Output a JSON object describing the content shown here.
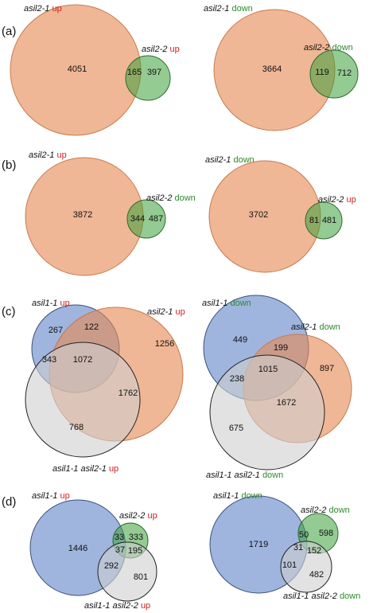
{
  "panels": {
    "a": {
      "label": "(a)",
      "left": {
        "set1": "asil2-1",
        "set1_dir": "up",
        "set2": "asil2-2",
        "set2_dir": "up",
        "only1": "4051",
        "both": "165",
        "only2": "397"
      },
      "right": {
        "set1": "asil2-1",
        "set1_dir": "down",
        "set2": "asil2-2",
        "set2_dir": "down",
        "only1": "3664",
        "both": "119",
        "only2": "712"
      }
    },
    "b": {
      "label": "(b)",
      "left": {
        "set1": "asil2-1",
        "set1_dir": "up",
        "set2": "asil2-2",
        "set2_dir": "down",
        "only1": "3872",
        "both": "344",
        "only2": "487"
      },
      "right": {
        "set1": "asil2-1",
        "set1_dir": "down",
        "set2": "asil2-2",
        "set2_dir": "up",
        "only1": "3702",
        "both": "81",
        "only2": "481"
      }
    },
    "c": {
      "label": "(c)",
      "left": {
        "blue": "asil1-1",
        "blue_dir": "up",
        "orange": "asil2-1",
        "orange_dir": "up",
        "grey": "asil1-1 asil2-1",
        "grey_dir": "up",
        "n_blue": "267",
        "n_blue_orange": "122",
        "n_orange": "1256",
        "n_blue_grey": "343",
        "n_all": "1072",
        "n_orange_grey": "1762",
        "n_grey": "768"
      },
      "right": {
        "blue": "asil1-1",
        "blue_dir": "down",
        "orange": "asil2-1",
        "orange_dir": "down",
        "grey": "asil1-1 asil2-1",
        "grey_dir": "down",
        "n_blue": "449",
        "n_blue_orange": "199",
        "n_orange": "897",
        "n_blue_grey": "238",
        "n_all": "1015",
        "n_orange_grey": "1672",
        "n_grey": "675"
      }
    },
    "d": {
      "label": "(d)",
      "left": {
        "blue": "asil1-1",
        "blue_dir": "up",
        "green": "asil2-2",
        "green_dir": "up",
        "grey": "asil1-1 asil2-2",
        "grey_dir": "up",
        "n_blue": "1446",
        "n_blue_green": "33",
        "n_green": "333",
        "n_all": "37",
        "n_green_grey": "195",
        "n_blue_grey": "292",
        "n_grey": "801"
      },
      "right": {
        "blue": "asil1-1",
        "blue_dir": "down",
        "green": "asil2-2",
        "green_dir": "down",
        "grey": "asil1-1 asil2-2",
        "grey_dir": "down",
        "n_blue": "1719",
        "n_blue_green": "50",
        "n_green": "598",
        "n_all": "31",
        "n_green_grey": "152",
        "n_blue_grey": "101",
        "n_grey": "482"
      }
    }
  },
  "colors": {
    "orange": "#e58a55",
    "green": "#3aa03a",
    "blue": "#5a7fc6",
    "grey": "#cfcfcf",
    "up": "#d42020",
    "down": "#2d8a2d"
  }
}
